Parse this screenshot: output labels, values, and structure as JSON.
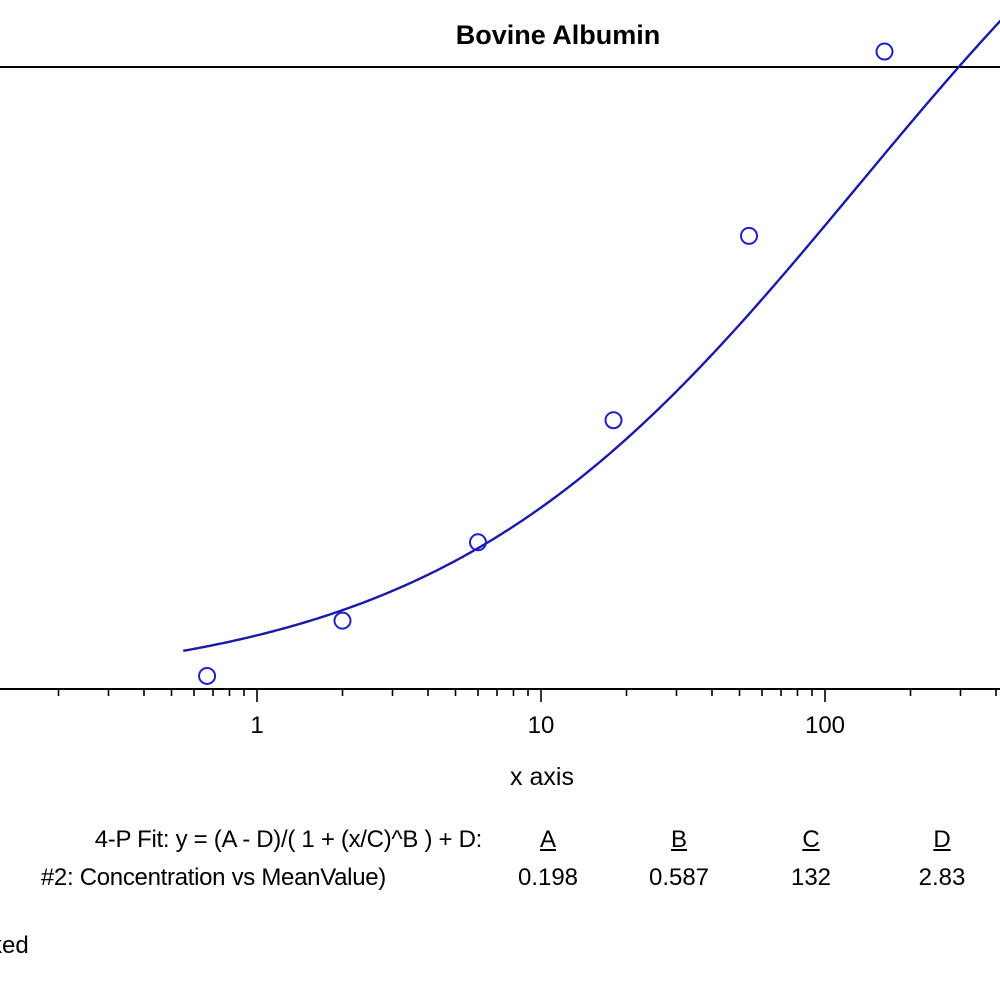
{
  "chart_data": {
    "type": "scatter",
    "title": "Bovine Albumin",
    "xlabel": "x axis",
    "xscale": "log",
    "xlim": [
      0.18,
      600
    ],
    "x_tick_labels": [
      "1",
      "10",
      "100"
    ],
    "series": [
      {
        "points": [
          {
            "x": 0.667,
            "y": 0.234
          },
          {
            "x": 2.0,
            "y": 0.378
          },
          {
            "x": 6.0,
            "y": 0.582
          },
          {
            "x": 18.0,
            "y": 0.9
          },
          {
            "x": 54.0,
            "y": 1.38
          },
          {
            "x": 162.0,
            "y": 1.86
          }
        ],
        "marker": "circle",
        "color": "#2020c8"
      }
    ],
    "fit": {
      "model": "4-P Fit: y = (A - D)/( 1 + (x/C)^B ) + D:",
      "series_label": "#2: Concentration vs MeanValue)",
      "params": [
        {
          "name": "A",
          "value": "0.198"
        },
        {
          "name": "B",
          "value": "0.587"
        },
        {
          "name": "C",
          "value": "132"
        },
        {
          "name": "D",
          "value": "2.83"
        }
      ],
      "color": "#1a1aa8"
    },
    "note": "ked",
    "grid": false
  }
}
